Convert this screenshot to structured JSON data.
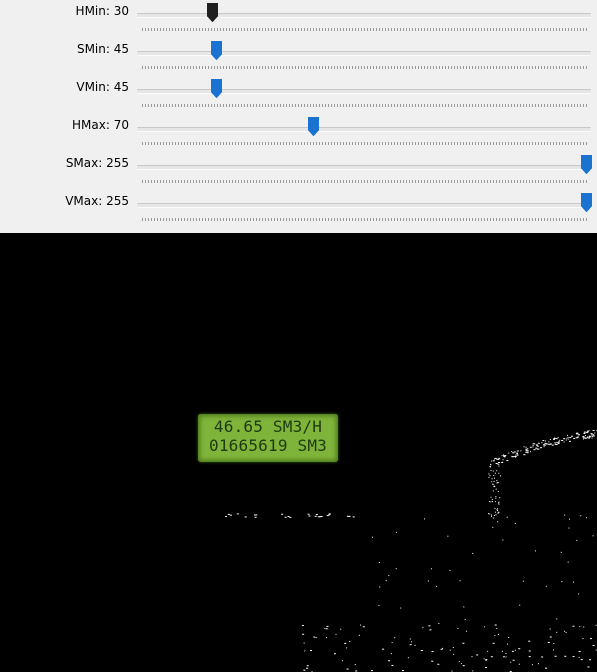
{
  "sliders": [
    {
      "label": "HMin: 30",
      "value": 30,
      "max": 179,
      "active": true
    },
    {
      "label": "SMin: 45",
      "value": 45,
      "max": 255,
      "active": false
    },
    {
      "label": "VMin: 45",
      "value": 45,
      "max": 255,
      "active": false
    },
    {
      "label": "HMax: 70",
      "value": 70,
      "max": 179,
      "active": false
    },
    {
      "label": "SMax: 255",
      "value": 255,
      "max": 255,
      "active": false
    },
    {
      "label": "VMax: 255",
      "value": 255,
      "max": 255,
      "active": false
    }
  ],
  "lcd": {
    "line1": "46.65 SM3/H",
    "line2": "01665619 SM3"
  },
  "colors": {
    "thumb_active": "#202020",
    "thumb": "#1a73d0",
    "panel": "#f0f0f0",
    "lcd": "#7fb43a"
  }
}
